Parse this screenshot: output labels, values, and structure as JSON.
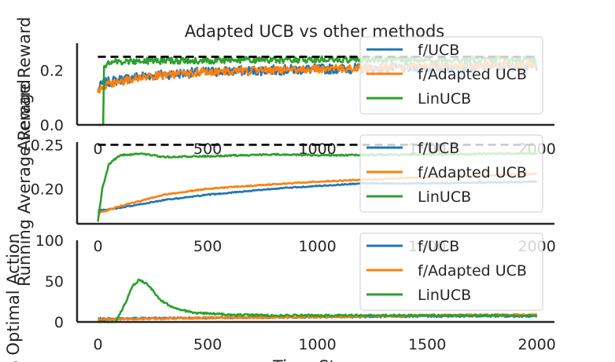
{
  "chart_data": [
    {
      "type": "line",
      "title": "Adapted UCB vs other methods",
      "ylabel": "Average Reward",
      "xlabel": "",
      "xlim": [
        -95,
        2080
      ],
      "ylim": [
        0,
        0.3
      ],
      "xticks": [
        "0",
        "500",
        "1000",
        "1500",
        "2000"
      ],
      "yticks": [
        "0.0",
        "0.2"
      ],
      "ytick_values": [
        0,
        0.2
      ],
      "reference_line": {
        "y": 0.25,
        "style": "dashed",
        "color": "#000000"
      },
      "legend_position": "upper right",
      "series": [
        {
          "name": "f/UCB",
          "color": "#1f77b4",
          "noise": 0.018,
          "points": [
            [
              0,
              0.13
            ],
            [
              20,
              0.15
            ],
            [
              60,
              0.16
            ],
            [
              200,
              0.18
            ],
            [
              500,
              0.195
            ],
            [
              1000,
              0.205
            ],
            [
              1500,
              0.21
            ],
            [
              2000,
              0.215
            ]
          ]
        },
        {
          "name": "f/Adapted UCB",
          "color": "#ff7f0e",
          "noise": 0.014,
          "points": [
            [
              0,
              0.12
            ],
            [
              20,
              0.14
            ],
            [
              60,
              0.15
            ],
            [
              200,
              0.175
            ],
            [
              500,
              0.195
            ],
            [
              1000,
              0.205
            ],
            [
              1500,
              0.215
            ],
            [
              2000,
              0.225
            ]
          ]
        },
        {
          "name": "LinUCB",
          "color": "#2ca02c",
          "noise": 0.012,
          "points": [
            [
              0,
              0.0
            ],
            [
              25,
              0.0
            ],
            [
              26,
              0.22
            ],
            [
              60,
              0.23
            ],
            [
              200,
              0.235
            ],
            [
              1000,
              0.24
            ],
            [
              2000,
              0.24
            ]
          ]
        }
      ]
    },
    {
      "type": "line",
      "ylabel": "Running Average Reward",
      "xlabel": "",
      "xlim": [
        -95,
        2080
      ],
      "ylim": [
        0.16,
        0.253
      ],
      "xticks": [
        "0",
        "500",
        "1000",
        "1500",
        "2000"
      ],
      "yticks": [
        "0.20",
        "0.25"
      ],
      "ytick_values": [
        0.2,
        0.25
      ],
      "reference_line": {
        "y": 0.25,
        "style": "dashed",
        "color": "#000000"
      },
      "legend_position": "upper right",
      "series": [
        {
          "name": "f/UCB",
          "color": "#1f77b4",
          "noise": 0.0006,
          "points": [
            [
              0,
              0.175
            ],
            [
              100,
              0.178
            ],
            [
              300,
              0.187
            ],
            [
              500,
              0.193
            ],
            [
              800,
              0.2
            ],
            [
              1000,
              0.203
            ],
            [
              1200,
              0.206
            ],
            [
              1500,
              0.206
            ],
            [
              2000,
              0.208
            ]
          ]
        },
        {
          "name": "f/Adapted UCB",
          "color": "#ff7f0e",
          "noise": 0.0006,
          "points": [
            [
              0,
              0.172
            ],
            [
              100,
              0.18
            ],
            [
              300,
              0.193
            ],
            [
              500,
              0.2
            ],
            [
              800,
              0.205
            ],
            [
              1000,
              0.208
            ],
            [
              1200,
              0.21
            ],
            [
              1500,
              0.213
            ],
            [
              2000,
              0.217
            ]
          ]
        },
        {
          "name": "LinUCB",
          "color": "#2ca02c",
          "noise": 0.0008,
          "points": [
            [
              0,
              0.163
            ],
            [
              20,
              0.2
            ],
            [
              50,
              0.228
            ],
            [
              100,
              0.238
            ],
            [
              200,
              0.24
            ],
            [
              300,
              0.236
            ],
            [
              500,
              0.237
            ],
            [
              800,
              0.239
            ],
            [
              1000,
              0.238
            ],
            [
              1500,
              0.239
            ],
            [
              2000,
              0.24
            ]
          ]
        }
      ]
    },
    {
      "type": "line",
      "ylabel": "% Optimal Action",
      "xlabel": "Time Step",
      "xlim": [
        -95,
        2080
      ],
      "ylim": [
        0,
        100
      ],
      "xticks": [
        "0",
        "500",
        "1000",
        "1500",
        "2000"
      ],
      "yticks": [
        "0",
        "50",
        "100"
      ],
      "ytick_values": [
        0,
        50,
        100
      ],
      "legend_position": "upper right",
      "series": [
        {
          "name": "f/UCB",
          "color": "#1f77b4",
          "noise": 1.0,
          "points": [
            [
              0,
              4
            ],
            [
              500,
              5
            ],
            [
              1000,
              6
            ],
            [
              1500,
              7
            ],
            [
              2000,
              7
            ]
          ]
        },
        {
          "name": "f/Adapted UCB",
          "color": "#ff7f0e",
          "noise": 1.0,
          "points": [
            [
              0,
              3
            ],
            [
              500,
              5
            ],
            [
              1000,
              6
            ],
            [
              1500,
              8
            ],
            [
              2000,
              9
            ]
          ]
        },
        {
          "name": "LinUCB",
          "color": "#2ca02c",
          "noise": 1.2,
          "points": [
            [
              0,
              0
            ],
            [
              80,
              0
            ],
            [
              120,
              20
            ],
            [
              160,
              45
            ],
            [
              190,
              52
            ],
            [
              230,
              45
            ],
            [
              280,
              28
            ],
            [
              350,
              16
            ],
            [
              450,
              11
            ],
            [
              600,
              9
            ],
            [
              800,
              8
            ],
            [
              1000,
              8
            ],
            [
              1500,
              8
            ],
            [
              2000,
              8
            ]
          ]
        }
      ]
    }
  ]
}
